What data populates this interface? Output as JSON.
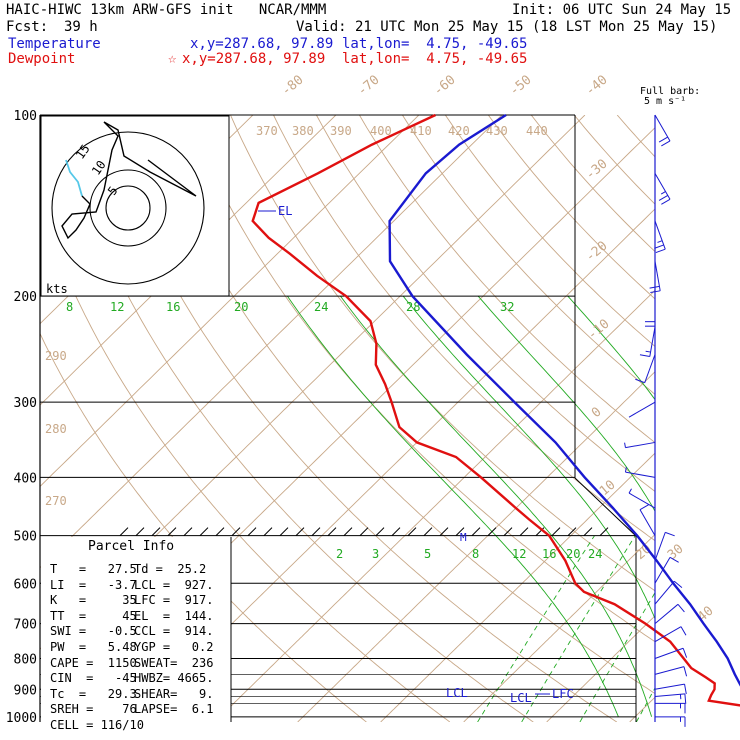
{
  "header": {
    "model": "HAIC-HIWC 13km ARW-GFS init   NCAR/MMM",
    "init": "Init: 06 UTC Sun 24 May 15",
    "fcst_label": "Fcst:",
    "fcst_value": "39 h",
    "valid": "Valid: 21 UTC Mon 25 May 15 (18 LST Mon 25 May 15)",
    "temperature_label": "Temperature",
    "temperature_xy": "x,y=287.68, 97.89",
    "temperature_latlon": "lat,lon=  4.75, -49.65",
    "dewpoint_label": "Dewpoint",
    "dewpoint_marker": "☆",
    "dewpoint_xy": "x,y=287.68, 97.89",
    "dewpoint_latlon": "lat,lon=  4.75, -49.65",
    "barb_title_1": "Full barb:",
    "barb_title_2": "5 m s⁻¹"
  },
  "colors": {
    "temperature": "#1a1ad0",
    "dewpoint": "#e01010",
    "isotherm": "#c8a888",
    "dry_adiabat": "#c8a888",
    "moist_adiabat": "#22aa22",
    "mixing_ratio": "#22aa22",
    "hodo_low": "#55c8e8"
  },
  "chart_data": {
    "type": "line",
    "title": "",
    "ylabel": "",
    "y_scale": "log-pressure",
    "ylim": [
      1020,
      100
    ],
    "pressure_levels": [
      "100",
      "200",
      "300",
      "400",
      "500",
      "600",
      "700",
      "800",
      "900",
      "1000"
    ],
    "isotherm_labels": [
      "-80",
      "-70",
      "-60",
      "-50",
      "-40",
      "-30",
      "-20",
      "-10",
      "0",
      "10",
      "20",
      "30",
      "40"
    ],
    "theta_labels": [
      "370",
      "380",
      "390",
      "400",
      "410",
      "420",
      "430",
      "440",
      "290",
      "280",
      "270"
    ],
    "moist_labels": [
      "8",
      "12",
      "16",
      "20",
      "24",
      "28",
      "32"
    ],
    "mixing_ratio_labels": [
      "2",
      "3",
      "5",
      "8",
      "12",
      "16",
      "20",
      "24"
    ],
    "level_labels": {
      "el": "EL",
      "lcl": "LCL",
      "lfc": "LFC",
      "m": "M"
    },
    "series": [
      {
        "name": "Temperature",
        "pressure": [
          1000,
          990,
          970,
          950,
          925,
          900,
          880,
          850,
          800,
          750,
          700,
          650,
          600,
          550,
          500,
          450,
          400,
          350,
          300,
          250,
          200,
          175,
          150,
          125,
          112,
          100
        ],
        "temp": [
          27.5,
          26.0,
          24.2,
          22.6,
          21.0,
          19.6,
          18.5,
          16.8,
          14.0,
          10.6,
          6.8,
          2.8,
          -1.8,
          -6.6,
          -12.0,
          -18.3,
          -25.5,
          -33.3,
          -43.2,
          -54.8,
          -68.5,
          -75.5,
          -80.5,
          -82.0,
          -81.5,
          -79.5
        ]
      },
      {
        "name": "Dewpoint",
        "pressure": [
          1000,
          985,
          975,
          960,
          940,
          920,
          900,
          880,
          860,
          830,
          800,
          750,
          700,
          650,
          620,
          600,
          550,
          500,
          470,
          450,
          400,
          370,
          350,
          330,
          300,
          280,
          260,
          240,
          220,
          200,
          185,
          170,
          160,
          150,
          140,
          125,
          112,
          100
        ],
        "temp": [
          25.2,
          24.6,
          23.8,
          22.0,
          16.9,
          16.5,
          16.2,
          15.5,
          13.7,
          10.8,
          8.7,
          5.0,
          -0.2,
          -6.3,
          -11.5,
          -13.6,
          -17.6,
          -22.6,
          -27.0,
          -30.0,
          -38.0,
          -43.5,
          -50.0,
          -54.0,
          -58.0,
          -61.0,
          -64.5,
          -67.0,
          -70.5,
          -76.5,
          -82.5,
          -88.5,
          -93.0,
          -97.0,
          -98.5,
          -95.0,
          -92.0,
          -88.0
        ]
      }
    ],
    "wind_barbs": {
      "pressure": [
        1000,
        950,
        925,
        900,
        850,
        800,
        750,
        700,
        650,
        600,
        550,
        500,
        450,
        400,
        350,
        300,
        250,
        225,
        200,
        175,
        150,
        125,
        100
      ],
      "speed_ms": [
        8,
        9,
        9,
        7,
        6,
        6,
        6,
        6,
        7,
        7,
        6,
        6,
        4,
        3,
        3,
        2,
        6,
        8,
        10,
        12,
        13,
        13,
        12
      ],
      "dir_deg": [
        90,
        90,
        85,
        80,
        75,
        70,
        60,
        50,
        40,
        30,
        20,
        330,
        300,
        280,
        260,
        240,
        200,
        190,
        180,
        170,
        160,
        150,
        150
      ]
    },
    "hodograph": {
      "rings_labels": [
        "5",
        "10",
        "15"
      ],
      "units_label": "kts"
    }
  },
  "parcel_info": {
    "title": "Parcel Info",
    "rows": [
      [
        "T   =   27.5",
        "Td =  25.2"
      ],
      [
        "LI  =   -3.7",
        "LCL =  927."
      ],
      [
        "K   =     35",
        "LFC =  917."
      ],
      [
        "TT  =     45",
        "EL  =  144."
      ],
      [
        "SWI =   -0.5",
        "CCL =  914."
      ],
      [
        "PW  =   5.48",
        "YGP =   0.2"
      ],
      [
        "CAPE =  1150",
        "SWEAT=  236"
      ],
      [
        "CIN  =   -45",
        "HWBZ= 4665."
      ],
      [
        "Tc  =   29.3",
        "SHEAR=   9."
      ],
      [
        "SREH =    76",
        "LAPSE=  6.1"
      ],
      [
        "CELL = 116/10",
        ""
      ]
    ]
  }
}
